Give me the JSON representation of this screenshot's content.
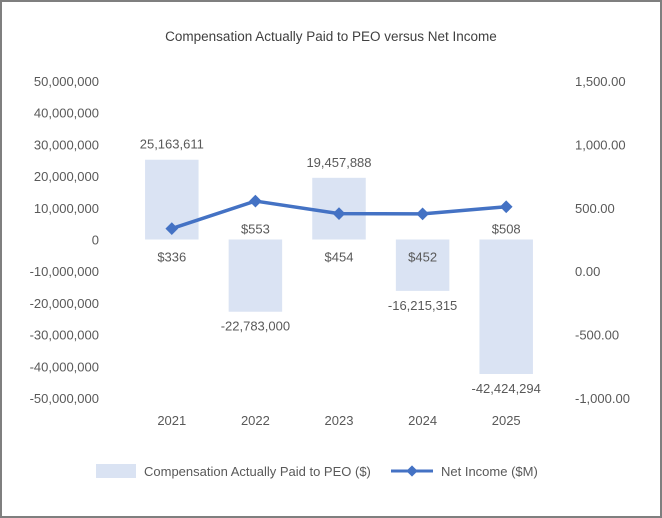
{
  "chart_data": {
    "type": "bar+line",
    "title": "Compensation Actually Paid to PEO versus Net Income",
    "categories": [
      "2021",
      "2022",
      "2023",
      "2024",
      "2025"
    ],
    "series": [
      {
        "name": "Compensation Actually Paid to PEO ($)",
        "type": "bar",
        "axis": "left",
        "color": "#dae3f3",
        "values": [
          25163611,
          -22783000,
          19457888,
          -16215315,
          -42424294
        ],
        "labels": [
          "25,163,611",
          "-22,783,000",
          "19,457,888",
          "-16,215,315",
          "-42,424,294"
        ]
      },
      {
        "name": "Net Income ($M)",
        "type": "line",
        "axis": "right",
        "color": "#4472c4",
        "values": [
          336,
          553,
          454,
          452,
          508
        ],
        "labels": [
          "$336",
          "$553",
          "$454",
          "$452",
          "$508"
        ]
      }
    ],
    "left_axis": {
      "min": -50000000,
      "max": 50000000,
      "step": 10000000,
      "tick_labels": [
        "50,000,000",
        "40,000,000",
        "30,000,000",
        "20,000,000",
        "10,000,000",
        "0",
        "-10,000,000",
        "-20,000,000",
        "-30,000,000",
        "-40,000,000",
        "-50,000,000"
      ]
    },
    "right_axis": {
      "min": -1000,
      "max": 1500,
      "step": 500,
      "tick_labels": [
        "1,500.00",
        "1,000.00",
        "500.00",
        "0.00",
        "-500.00",
        "-1,000.00"
      ]
    },
    "grid": false,
    "legend_position": "bottom"
  }
}
